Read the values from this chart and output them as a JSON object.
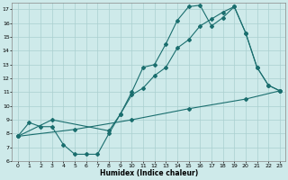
{
  "xlabel": "Humidex (Indice chaleur)",
  "bg_color": "#ceeaea",
  "grid_color": "#aacfcf",
  "line_color": "#1a6e6e",
  "xlim": [
    -0.5,
    23.5
  ],
  "ylim": [
    6,
    17.5
  ],
  "xticks": [
    0,
    1,
    2,
    3,
    4,
    5,
    6,
    7,
    8,
    9,
    10,
    11,
    12,
    13,
    14,
    15,
    16,
    17,
    18,
    19,
    20,
    21,
    22,
    23
  ],
  "yticks": [
    6,
    7,
    8,
    9,
    10,
    11,
    12,
    13,
    14,
    15,
    16,
    17
  ],
  "series1": {
    "x": [
      0,
      1,
      2,
      3,
      4,
      5,
      6,
      7,
      8,
      9,
      10,
      11,
      12,
      13,
      14,
      15,
      16,
      17,
      18,
      19,
      20,
      21,
      22,
      23
    ],
    "y": [
      7.8,
      8.8,
      8.5,
      8.5,
      7.2,
      6.5,
      6.5,
      6.5,
      8.0,
      9.4,
      11.0,
      12.8,
      13.0,
      14.5,
      16.2,
      17.2,
      17.3,
      15.8,
      16.4,
      17.2,
      15.3,
      12.8,
      11.5,
      11.1
    ]
  },
  "series2": {
    "x": [
      0,
      3,
      8,
      9,
      10,
      11,
      12,
      13,
      14,
      15,
      16,
      17,
      18,
      19,
      20,
      21,
      22,
      23
    ],
    "y": [
      7.8,
      9.0,
      8.2,
      9.4,
      10.8,
      11.3,
      12.2,
      12.8,
      14.2,
      14.8,
      15.8,
      16.3,
      16.8,
      17.2,
      15.3,
      12.8,
      11.5,
      11.1
    ]
  },
  "series3": {
    "x": [
      0,
      5,
      10,
      15,
      20,
      23
    ],
    "y": [
      7.8,
      8.3,
      9.0,
      9.8,
      10.5,
      11.1
    ]
  }
}
